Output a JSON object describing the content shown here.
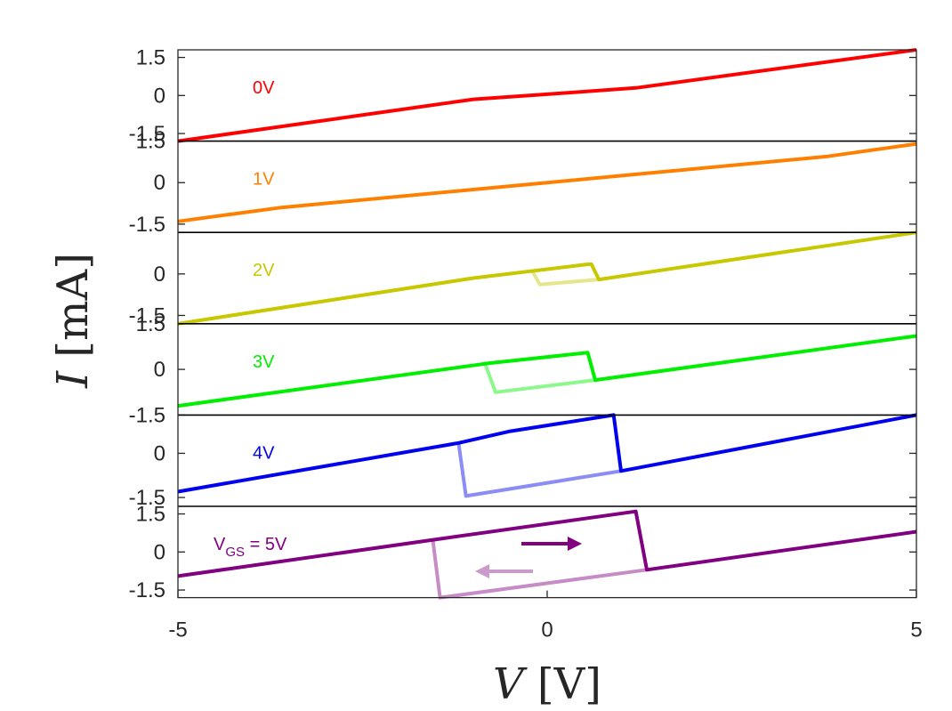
{
  "chart_data": {
    "type": "line",
    "xlabel": {
      "var": "V",
      "unit": "[V]"
    },
    "ylabel": {
      "var": "I",
      "unit": "[mA]"
    },
    "xlim": [
      -5,
      5
    ],
    "x_ticks": [
      "-5",
      "0",
      "5"
    ],
    "grid": false,
    "arrows": {
      "forward_color": "#800080",
      "backward_color": "#cc99cc"
    },
    "panels": [
      {
        "label": "0V",
        "color": "#ff0000",
        "ylim": [
          -1.8,
          1.8
        ],
        "y_ticks": [
          {
            "v": 1.5,
            "t": "1.5"
          },
          {
            "v": 0,
            "t": "0"
          },
          {
            "v": -1.5,
            "t": "-1.5"
          }
        ],
        "forward": [
          [
            -5,
            -1.8
          ],
          [
            -1,
            -0.15
          ],
          [
            0,
            0.05
          ],
          [
            1.2,
            0.3
          ],
          [
            5,
            1.8
          ]
        ],
        "backward": []
      },
      {
        "label": "1V",
        "color": "#ff8000",
        "ylim": [
          -1.8,
          1.5
        ],
        "y_ticks": [
          {
            "v": 1.5,
            "t": "1.5"
          },
          {
            "v": 0,
            "t": "0"
          },
          {
            "v": -1.5,
            "t": "-1.5"
          }
        ],
        "forward": [
          [
            -5,
            -1.4
          ],
          [
            -3.6,
            -0.9
          ],
          [
            -1,
            -0.25
          ],
          [
            0,
            0
          ],
          [
            1.2,
            0.3
          ],
          [
            3.8,
            0.95
          ],
          [
            5,
            1.4
          ]
        ],
        "backward": []
      },
      {
        "label": "2V",
        "color": "#c8c800",
        "ylim": [
          -1.8,
          1.5
        ],
        "y_ticks": [
          {
            "v": 0,
            "t": "0"
          },
          {
            "v": -1.5,
            "t": "-1.5"
          }
        ],
        "forward": [
          [
            -5,
            -1.8
          ],
          [
            -1,
            -0.15
          ],
          [
            0.55,
            0.35
          ],
          [
            0.6,
            0.35
          ],
          [
            0.7,
            -0.2
          ],
          [
            5,
            1.5
          ]
        ],
        "backward": [
          [
            0.7,
            -0.2
          ],
          [
            -0.1,
            -0.38
          ],
          [
            -0.2,
            0.1
          ]
        ]
      },
      {
        "label": "3V",
        "color": "#00ee00",
        "ylim": [
          -1.5,
          1.5
        ],
        "y_ticks": [
          {
            "v": 1.5,
            "t": "1.5"
          },
          {
            "v": 0,
            "t": "0"
          },
          {
            "v": -1.5,
            "t": "-1.5"
          }
        ],
        "forward": [
          [
            -5,
            -1.2
          ],
          [
            -0.8,
            0.2
          ],
          [
            0.55,
            0.55
          ],
          [
            0.65,
            -0.35
          ],
          [
            5,
            1.1
          ]
        ],
        "backward": [
          [
            0.65,
            -0.35
          ],
          [
            -0.7,
            -0.75
          ],
          [
            -0.85,
            0.25
          ]
        ]
      },
      {
        "label": "4V",
        "color": "#0000ee",
        "ylim": [
          -1.8,
          1.3
        ],
        "y_ticks": [
          {
            "v": 0,
            "t": "0"
          },
          {
            "v": -1.5,
            "t": "-1.5"
          }
        ],
        "forward": [
          [
            -5,
            -1.3
          ],
          [
            -1.2,
            0.35
          ],
          [
            -0.5,
            0.75
          ],
          [
            0.9,
            1.3
          ],
          [
            1.0,
            -0.6
          ],
          [
            5,
            1.3
          ]
        ],
        "backward": [
          [
            1.0,
            -0.6
          ],
          [
            -1.1,
            -1.45
          ],
          [
            -1.2,
            0.35
          ]
        ]
      },
      {
        "label": "5V",
        "label_prefix": "V",
        "label_sub": "GS",
        "label_suffix": " = 5V",
        "color": "#800080",
        "ylim": [
          -1.8,
          1.8
        ],
        "y_ticks": [
          {
            "v": 1.5,
            "t": "1.5"
          },
          {
            "v": 0,
            "t": "0"
          },
          {
            "v": -1.5,
            "t": "-1.5"
          }
        ],
        "forward": [
          [
            -5,
            -0.95
          ],
          [
            -1.5,
            0.5
          ],
          [
            1.2,
            1.6
          ],
          [
            1.35,
            -0.7
          ],
          [
            5,
            0.8
          ]
        ],
        "backward": [
          [
            1.35,
            -0.7
          ],
          [
            -1.45,
            -1.8
          ],
          [
            -1.55,
            0.5
          ]
        ]
      }
    ]
  }
}
